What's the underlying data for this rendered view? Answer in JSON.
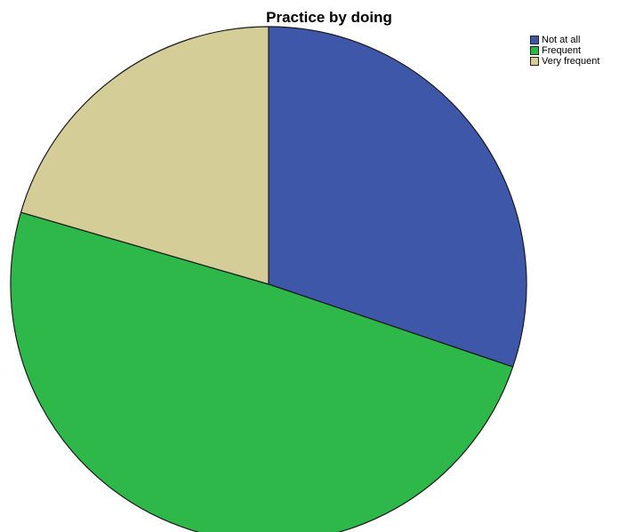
{
  "chart_data": {
    "type": "pie",
    "title": "Practice by doing",
    "legend_position": "top-right",
    "series": [
      {
        "name": "Not at all",
        "value": 30.2,
        "color": "#3f57a8"
      },
      {
        "name": "Frequent",
        "value": 49.3,
        "color": "#2fb84a"
      },
      {
        "name": "Very frequent",
        "value": 20.5,
        "color": "#d4cd98"
      }
    ]
  }
}
